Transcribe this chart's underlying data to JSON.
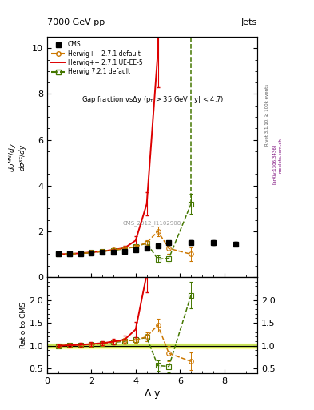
{
  "cms_x": [
    0.5,
    1.0,
    1.5,
    2.0,
    2.5,
    3.0,
    3.5,
    4.0,
    4.5,
    5.0,
    5.5,
    6.5,
    7.5,
    8.5
  ],
  "cms_y": [
    1.0,
    1.0,
    1.02,
    1.04,
    1.07,
    1.09,
    1.12,
    1.18,
    1.25,
    1.38,
    1.5,
    1.52,
    1.5,
    1.45
  ],
  "cms_yerr": [
    0.02,
    0.02,
    0.02,
    0.02,
    0.025,
    0.03,
    0.03,
    0.04,
    0.05,
    0.07,
    0.09,
    0.1,
    0.1,
    0.1
  ],
  "h271_x": [
    0.5,
    1.0,
    1.5,
    2.0,
    2.5,
    3.0,
    3.5,
    4.0,
    4.5,
    5.0,
    5.5,
    6.5
  ],
  "h271_y": [
    1.0,
    1.01,
    1.03,
    1.07,
    1.12,
    1.18,
    1.25,
    1.32,
    1.5,
    2.0,
    1.25,
    1.0
  ],
  "h271_yerr": [
    0.03,
    0.03,
    0.03,
    0.04,
    0.04,
    0.05,
    0.06,
    0.07,
    0.12,
    0.2,
    0.25,
    0.3
  ],
  "h271ue_x": [
    0.5,
    1.0,
    1.5,
    2.0,
    2.5,
    3.0,
    3.5,
    4.0,
    4.5,
    5.0
  ],
  "h271ue_y": [
    1.0,
    1.01,
    1.04,
    1.08,
    1.13,
    1.19,
    1.27,
    1.6,
    3.2,
    9.8
  ],
  "h271ue_yerr": [
    0.03,
    0.03,
    0.04,
    0.04,
    0.05,
    0.07,
    0.1,
    0.2,
    0.5,
    1.5
  ],
  "h271ue_vline": 5.0,
  "h721_x": [
    0.5,
    1.0,
    1.5,
    2.0,
    2.5,
    3.0,
    3.5,
    4.0,
    4.5,
    5.0,
    5.5,
    6.5
  ],
  "h721_y": [
    1.0,
    1.01,
    1.04,
    1.07,
    1.12,
    1.17,
    1.23,
    1.33,
    1.48,
    0.78,
    0.82,
    3.2
  ],
  "h721_yerr": [
    0.03,
    0.03,
    0.03,
    0.04,
    0.04,
    0.05,
    0.06,
    0.07,
    0.1,
    0.15,
    0.2,
    0.45
  ],
  "h721_vline": 6.5,
  "color_cms": "#000000",
  "color_h271": "#cc7700",
  "color_h271ue": "#dd0000",
  "color_h721": "#447700",
  "ylim_main": [
    0,
    10.5
  ],
  "yticks_main": [
    0,
    2,
    4,
    6,
    8,
    10
  ],
  "ylim_ratio": [
    0.4,
    2.5
  ],
  "yticks_ratio": [
    0.5,
    1.0,
    1.5,
    2.0
  ],
  "xlim": [
    0,
    9.5
  ],
  "title_left": "7000 GeV pp",
  "title_right": "Jets",
  "plot_annotation": "Gap fraction vsΔy (p_{T} > 35 GeV, |y| < 4.7)",
  "watermark": "CMS_2012_I1102908",
  "ylabel_main": "dσ^{MN}/dy / dσ^{xc}/dy",
  "ylabel_ratio": "Ratio to CMS",
  "xlabel": "Δ y"
}
